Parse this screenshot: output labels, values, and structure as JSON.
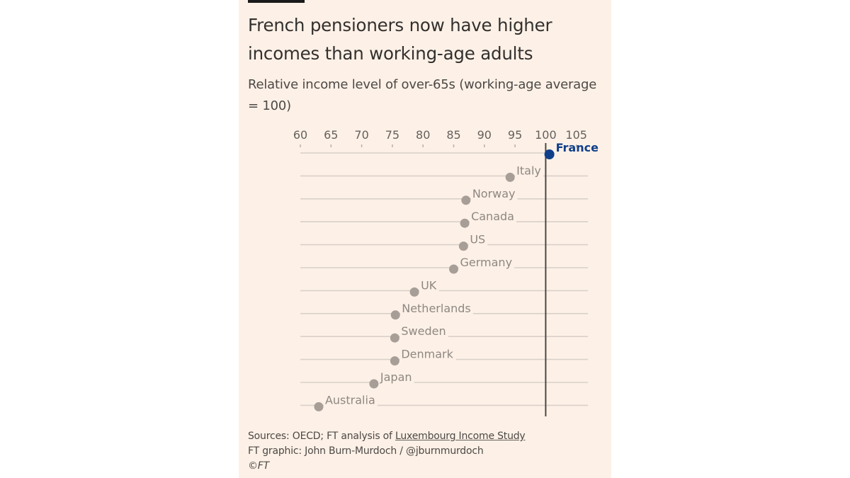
{
  "header": {
    "title": "French pensioners now have higher incomes than working-age adults",
    "subtitle": "Relative income level of over-65s (working-age average = 100)"
  },
  "colors": {
    "background": "#fdf1e7",
    "highlight": "#0f3f8a",
    "dot": "#a89e98",
    "gridline": "#d9d0c9",
    "reference_line": "#4d4845",
    "label": "#8f8782"
  },
  "chart_data": {
    "type": "scatter",
    "title": "French pensioners now have higher incomes than working-age adults",
    "subtitle": "Relative income level of over-65s (working-age average = 100)",
    "xlabel": "",
    "ylabel": "",
    "xlim": [
      60,
      107
    ],
    "xticks": [
      60,
      65,
      70,
      75,
      80,
      85,
      90,
      95,
      100,
      105
    ],
    "xtick_labels": [
      "60",
      "65",
      "70",
      "75",
      "80",
      "85",
      "90",
      "95",
      "100",
      "105"
    ],
    "reference_line": 100,
    "grid": true,
    "legend": "none",
    "categories": [
      "France",
      "Italy",
      "Norway",
      "Canada",
      "US",
      "Germany",
      "UK",
      "Netherlands",
      "Sweden",
      "Denmark",
      "Japan",
      "Australia"
    ],
    "values": [
      100.6,
      94.2,
      87.0,
      86.8,
      86.6,
      85.0,
      78.6,
      75.5,
      75.4,
      75.4,
      72.0,
      63.0
    ],
    "highlight": [
      "France"
    ]
  },
  "footer": {
    "sources_prefix": "Sources: OECD; FT analysis of ",
    "sources_link": "Luxembourg Income Study",
    "credit": "FT graphic: John Burn-Murdoch / @jburnmurdoch",
    "copyright": "©FT"
  }
}
